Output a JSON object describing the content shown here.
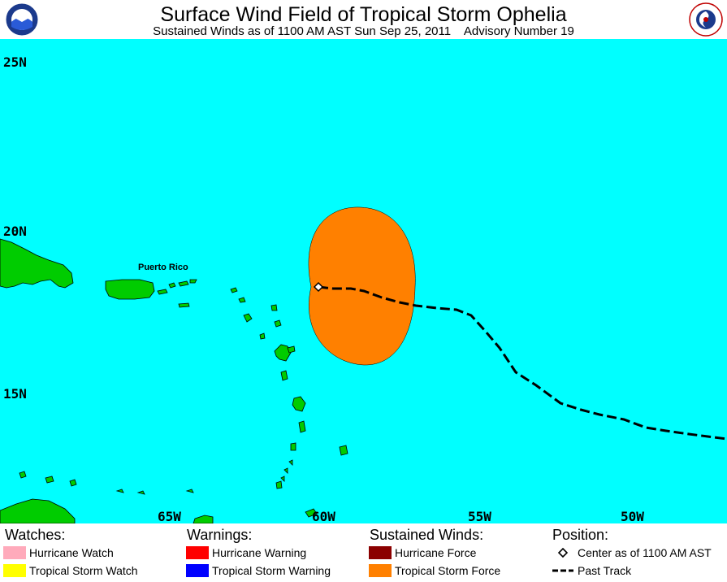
{
  "header": {
    "title": "Surface Wind Field of Tropical Storm Ophelia",
    "subtitle": "Sustained Winds as of 1100 AM AST Sun Sep 25, 2011    Advisory Number 19",
    "left_logo": "NOAA",
    "right_logo": "NATIONAL WEATHER SERVICE"
  },
  "map": {
    "lat_labels": [
      "25N",
      "20N",
      "15N"
    ],
    "lon_labels": [
      "65W",
      "60W",
      "55W",
      "50W"
    ],
    "place_label": "Puerto Rico",
    "colors": {
      "ocean": "#00ffff",
      "land": "#00cc00",
      "tropical_storm_force": "#ff8000"
    }
  },
  "legend": {
    "watches": {
      "heading": "Watches:",
      "items": [
        {
          "label": "Hurricane Watch",
          "color": "#ffaabb"
        },
        {
          "label": "Tropical Storm Watch",
          "color": "#ffff00"
        }
      ]
    },
    "warnings": {
      "heading": "Warnings:",
      "items": [
        {
          "label": "Hurricane Warning",
          "color": "#ff0000"
        },
        {
          "label": "Tropical Storm Warning",
          "color": "#0000ff"
        }
      ]
    },
    "sustained_winds": {
      "heading": "Sustained Winds:",
      "items": [
        {
          "label": "Hurricane Force",
          "color": "#8b0000"
        },
        {
          "label": "Tropical Storm Force",
          "color": "#ff8000"
        }
      ]
    },
    "position": {
      "heading": "Position:",
      "items": [
        {
          "label": "Center as of 1100 AM AST",
          "icon": "diamond-icon"
        },
        {
          "label": "Past Track",
          "icon": "dashed-line-icon"
        }
      ]
    }
  }
}
